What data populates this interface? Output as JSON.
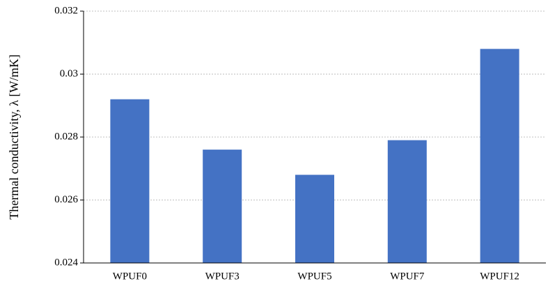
{
  "chart_data": {
    "type": "bar",
    "y_label": "Thermal conductivity, λ [W/mK]",
    "categories": [
      "WPUF0",
      "WPUF3",
      "WPUF5",
      "WPUF7",
      "WPUF12"
    ],
    "values": [
      0.0292,
      0.0276,
      0.0268,
      0.0279,
      0.0308
    ],
    "color": "#4472c4",
    "ylim": [
      0.024,
      0.032
    ],
    "yticks": [
      0.024,
      0.026,
      0.028,
      0.03,
      0.032
    ],
    "grid": true
  }
}
